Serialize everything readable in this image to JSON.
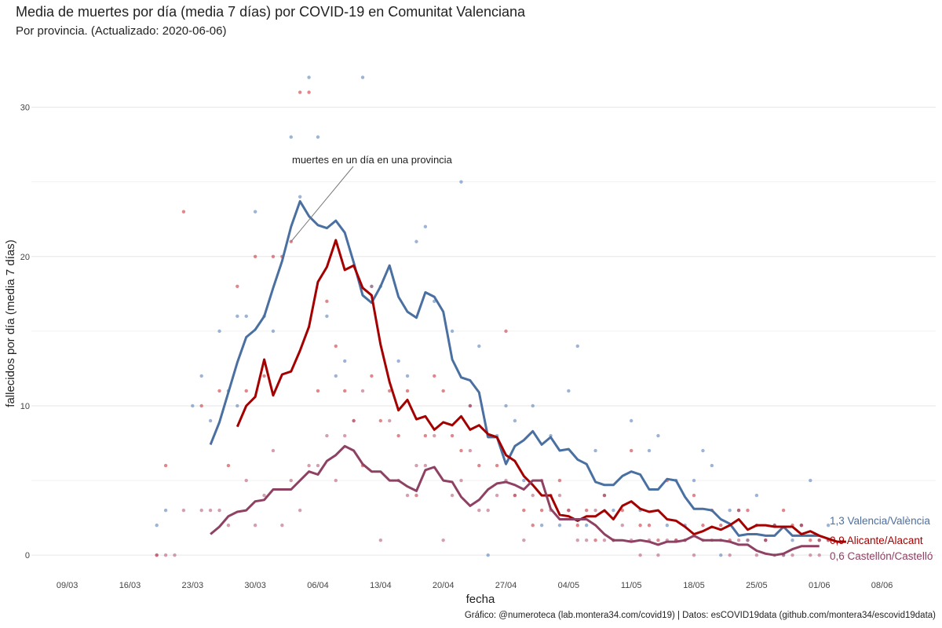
{
  "header": {
    "title": "Media de muertes por día (media 7 días) por COVID-19 en Comunitat Valenciana",
    "subtitle": "Por provincia. (Actualizado: 2020-06-06)"
  },
  "caption": "Gráfico: @numeroteca (lab.montera34.com/covid19) | Datos: esCOVID19data (github.com/montera34/escovid19data)",
  "chart_data": {
    "type": "line",
    "xlabel": "fecha",
    "ylabel": "fallecidos por día (media 7 días)",
    "x_ticks": [
      "09/03",
      "16/03",
      "23/03",
      "30/03",
      "06/04",
      "13/04",
      "20/04",
      "27/04",
      "04/05",
      "11/05",
      "18/05",
      "25/05",
      "01/06",
      "08/06"
    ],
    "x_tick_days": [
      0,
      7,
      14,
      21,
      28,
      35,
      42,
      49,
      56,
      63,
      70,
      77,
      84,
      91
    ],
    "xlim": [
      -4,
      97
    ],
    "y_ticks": [
      0,
      10,
      20,
      30
    ],
    "ylim": [
      -1.2,
      33.5
    ],
    "grid": true,
    "annotation": "muertes en un día en una provincia",
    "series": [
      {
        "name": "1,3 Valencia/València",
        "color": "#4a6fa1",
        "points_color": "#4a77b4",
        "x_start": 16,
        "values": [
          7.4,
          8.9,
          10.9,
          12.9,
          14.6,
          15.1,
          16.0,
          17.9,
          19.7,
          22.0,
          23.7,
          22.7,
          22.1,
          21.9,
          22.4,
          21.6,
          19.6,
          17.4,
          16.9,
          18.0,
          19.4,
          17.3,
          16.3,
          15.9,
          17.6,
          17.3,
          16.3,
          13.1,
          11.9,
          11.7,
          10.9,
          7.9,
          7.9,
          6.1,
          7.3,
          7.7,
          8.3,
          7.4,
          7.9,
          7.0,
          7.1,
          6.4,
          6.1,
          4.9,
          4.7,
          4.7,
          5.3,
          5.6,
          5.4,
          4.4,
          4.4,
          5.1,
          5.0,
          3.9,
          3.1,
          3.1,
          3.0,
          2.4,
          2.1,
          1.3,
          1.4,
          1.4,
          1.3,
          1.3,
          1.9,
          1.3,
          1.3,
          1.3,
          1.3
        ],
        "points": [
          [
            10,
            2
          ],
          [
            11,
            3
          ],
          [
            14,
            10
          ],
          [
            15,
            12
          ],
          [
            16,
            9
          ],
          [
            17,
            15
          ],
          [
            18,
            11
          ],
          [
            19,
            10
          ],
          [
            19,
            16
          ],
          [
            20,
            16
          ],
          [
            21,
            23
          ],
          [
            22,
            16
          ],
          [
            23,
            15
          ],
          [
            25,
            28
          ],
          [
            26,
            24
          ],
          [
            27,
            32
          ],
          [
            28,
            28
          ],
          [
            29,
            16
          ],
          [
            30,
            12
          ],
          [
            31,
            13
          ],
          [
            33,
            32
          ],
          [
            34,
            18
          ],
          [
            35,
            18
          ],
          [
            37,
            13
          ],
          [
            38,
            12
          ],
          [
            39,
            21
          ],
          [
            40,
            22
          ],
          [
            41,
            17
          ],
          [
            43,
            15
          ],
          [
            44,
            25
          ],
          [
            45,
            10
          ],
          [
            46,
            14
          ],
          [
            47,
            0
          ],
          [
            48,
            8
          ],
          [
            49,
            10
          ],
          [
            50,
            9
          ],
          [
            51,
            5
          ],
          [
            52,
            10
          ],
          [
            53,
            2
          ],
          [
            54,
            8
          ],
          [
            55,
            2
          ],
          [
            56,
            11
          ],
          [
            57,
            14
          ],
          [
            58,
            2
          ],
          [
            59,
            7
          ],
          [
            60,
            4
          ],
          [
            61,
            3
          ],
          [
            63,
            9
          ],
          [
            64,
            3
          ],
          [
            65,
            7
          ],
          [
            66,
            8
          ],
          [
            67,
            2
          ],
          [
            68,
            5
          ],
          [
            69,
            2
          ],
          [
            70,
            5
          ],
          [
            71,
            7
          ],
          [
            72,
            6
          ],
          [
            73,
            0
          ],
          [
            74,
            3
          ],
          [
            75,
            3
          ],
          [
            76,
            1
          ],
          [
            77,
            4
          ],
          [
            78,
            1
          ],
          [
            79,
            2
          ],
          [
            80,
            0
          ],
          [
            81,
            1
          ],
          [
            82,
            2
          ],
          [
            83,
            5
          ],
          [
            84,
            1
          ],
          [
            85,
            2
          ]
        ]
      },
      {
        "name": "0,9 Alicante/Alacant",
        "color": "#a50000",
        "points_color": "#c9252b",
        "x_start": 19,
        "values": [
          8.6,
          10.0,
          10.6,
          13.1,
          10.7,
          12.1,
          12.3,
          13.7,
          15.3,
          18.3,
          19.3,
          21.1,
          19.1,
          19.4,
          17.9,
          17.4,
          14.1,
          11.6,
          9.7,
          10.4,
          9.1,
          9.3,
          8.4,
          8.9,
          8.7,
          9.3,
          8.4,
          8.7,
          8.1,
          7.9,
          6.7,
          6.3,
          5.3,
          4.7,
          4.0,
          4.0,
          2.7,
          2.6,
          2.3,
          2.6,
          2.6,
          3.0,
          2.4,
          3.3,
          3.6,
          3.1,
          2.9,
          3.0,
          2.4,
          2.3,
          1.9,
          1.4,
          1.6,
          1.9,
          1.7,
          2.0,
          2.4,
          1.7,
          2.0,
          2.0,
          1.9,
          1.9,
          1.9,
          1.4,
          1.6,
          1.3,
          1.1,
          0.9,
          0.9
        ]
      },
      {
        "name": "0,6 Castellón/Castelló",
        "color": "#8e4163",
        "points_color": "#b0506e",
        "x_start": 16,
        "values": [
          1.4,
          1.9,
          2.6,
          2.9,
          3.0,
          3.6,
          3.7,
          4.4,
          4.4,
          4.4,
          5.0,
          5.6,
          5.4,
          6.3,
          6.7,
          7.3,
          7.0,
          6.1,
          5.6,
          5.6,
          5.0,
          5.0,
          4.6,
          4.3,
          5.7,
          5.9,
          5.0,
          4.9,
          3.9,
          3.3,
          3.7,
          4.4,
          4.8,
          4.9,
          4.7,
          4.4,
          5.0,
          5.0,
          3.1,
          2.4,
          2.4,
          2.4,
          2.4,
          2.0,
          1.4,
          1.0,
          1.0,
          0.9,
          1.0,
          0.9,
          0.7,
          0.9,
          0.9,
          1.0,
          1.3,
          1.0,
          1.0,
          1.0,
          0.9,
          0.7,
          0.7,
          0.3,
          0.1,
          0.0,
          0.1,
          0.4,
          0.6,
          0.6,
          0.6
        ],
        "points": [
          [
            10,
            0
          ],
          [
            11,
            0
          ],
          [
            12,
            0
          ],
          [
            13,
            3
          ],
          [
            15,
            3
          ],
          [
            16,
            3
          ],
          [
            17,
            3
          ],
          [
            18,
            2
          ],
          [
            20,
            5
          ],
          [
            21,
            2
          ],
          [
            22,
            4
          ],
          [
            23,
            7
          ],
          [
            24,
            2
          ],
          [
            25,
            5
          ],
          [
            26,
            3
          ],
          [
            27,
            6
          ],
          [
            28,
            6
          ],
          [
            29,
            8
          ],
          [
            30,
            5
          ],
          [
            31,
            8
          ],
          [
            32,
            9
          ],
          [
            33,
            11
          ],
          [
            34,
            18
          ],
          [
            35,
            1
          ],
          [
            36,
            9
          ],
          [
            37,
            5
          ],
          [
            38,
            4
          ],
          [
            39,
            6
          ],
          [
            40,
            6
          ],
          [
            41,
            8
          ],
          [
            42,
            1
          ],
          [
            43,
            4
          ],
          [
            44,
            5
          ],
          [
            45,
            7
          ],
          [
            46,
            3
          ],
          [
            47,
            3
          ],
          [
            48,
            4
          ],
          [
            49,
            5
          ],
          [
            50,
            4
          ],
          [
            51,
            1
          ],
          [
            52,
            4
          ],
          [
            53,
            5
          ],
          [
            54,
            3
          ],
          [
            55,
            4
          ],
          [
            56,
            3
          ],
          [
            57,
            1
          ],
          [
            58,
            1
          ],
          [
            59,
            3
          ],
          [
            60,
            1
          ],
          [
            61,
            1
          ],
          [
            62,
            2
          ],
          [
            63,
            1
          ],
          [
            64,
            0
          ],
          [
            65,
            1
          ],
          [
            66,
            0
          ],
          [
            67,
            1
          ],
          [
            68,
            1
          ],
          [
            69,
            1
          ],
          [
            70,
            0
          ],
          [
            71,
            1
          ],
          [
            72,
            1
          ],
          [
            73,
            1
          ],
          [
            74,
            0
          ],
          [
            75,
            1
          ],
          [
            76,
            1
          ],
          [
            77,
            0
          ],
          [
            78,
            1
          ],
          [
            79,
            0
          ],
          [
            80,
            0
          ],
          [
            81,
            0
          ],
          [
            82,
            2
          ],
          [
            83,
            0
          ],
          [
            84,
            0
          ],
          [
            85,
            1
          ]
        ]
      }
    ],
    "alicante_points": [
      [
        10,
        0
      ],
      [
        11,
        6
      ],
      [
        13,
        23
      ],
      [
        15,
        10
      ],
      [
        17,
        11
      ],
      [
        18,
        6
      ],
      [
        19,
        18
      ],
      [
        20,
        11
      ],
      [
        21,
        20
      ],
      [
        22,
        12
      ],
      [
        23,
        20
      ],
      [
        24,
        20
      ],
      [
        25,
        21
      ],
      [
        26,
        31
      ],
      [
        27,
        31
      ],
      [
        28,
        11
      ],
      [
        29,
        17
      ],
      [
        30,
        14
      ],
      [
        31,
        11
      ],
      [
        32,
        9
      ],
      [
        33,
        6
      ],
      [
        34,
        12
      ],
      [
        35,
        9
      ],
      [
        36,
        11
      ],
      [
        37,
        8
      ],
      [
        38,
        11
      ],
      [
        39,
        4
      ],
      [
        40,
        8
      ],
      [
        41,
        12
      ],
      [
        42,
        11
      ],
      [
        43,
        8
      ],
      [
        44,
        7
      ],
      [
        45,
        10
      ],
      [
        46,
        6
      ],
      [
        47,
        8
      ],
      [
        48,
        6
      ],
      [
        49,
        15
      ],
      [
        50,
        4
      ],
      [
        51,
        3
      ],
      [
        52,
        2
      ],
      [
        53,
        3
      ],
      [
        54,
        4
      ],
      [
        55,
        5
      ],
      [
        56,
        3
      ],
      [
        57,
        2
      ],
      [
        58,
        3
      ],
      [
        59,
        1
      ],
      [
        60,
        4
      ],
      [
        61,
        1
      ],
      [
        62,
        3
      ],
      [
        63,
        7
      ],
      [
        64,
        2
      ],
      [
        65,
        2
      ],
      [
        66,
        1
      ],
      [
        67,
        5
      ],
      [
        68,
        1
      ],
      [
        69,
        1
      ],
      [
        70,
        4
      ],
      [
        71,
        2
      ],
      [
        72,
        3
      ],
      [
        73,
        2
      ],
      [
        74,
        1
      ],
      [
        75,
        3
      ],
      [
        76,
        3
      ],
      [
        77,
        2
      ],
      [
        78,
        1
      ],
      [
        79,
        2
      ],
      [
        80,
        3
      ],
      [
        81,
        2
      ],
      [
        82,
        2
      ],
      [
        83,
        1
      ],
      [
        84,
        1
      ],
      [
        85,
        1
      ]
    ]
  }
}
